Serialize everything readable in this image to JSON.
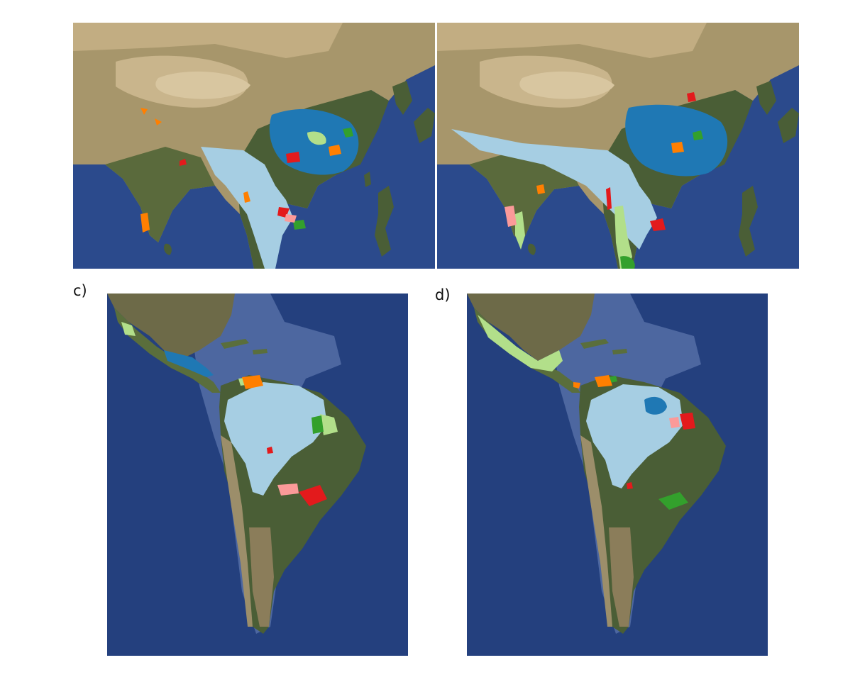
{
  "panels": [
    {
      "id": "a",
      "label": "",
      "region": "asia"
    },
    {
      "id": "b",
      "label": "",
      "region": "asia"
    },
    {
      "id": "c",
      "label": "c)",
      "region": "americas"
    },
    {
      "id": "d",
      "label": "d)",
      "region": "americas"
    }
  ],
  "legend_colors": {
    "light_blue": "#a6cee3",
    "dark_blue": "#1f78b4",
    "light_green": "#b2df8a",
    "green": "#33a02c",
    "pink": "#fb9a99",
    "red": "#e31a1c",
    "orange": "#ff7f00"
  },
  "basemap_colors": {
    "ocean": "#2b4a8c",
    "deep_ocean": "#1c3370",
    "shelf": "#5670a8",
    "desert": "#c8b48a",
    "steppe": "#9c8e6a",
    "forest": "#4a5e36",
    "green_land": "#5a6e3c"
  }
}
